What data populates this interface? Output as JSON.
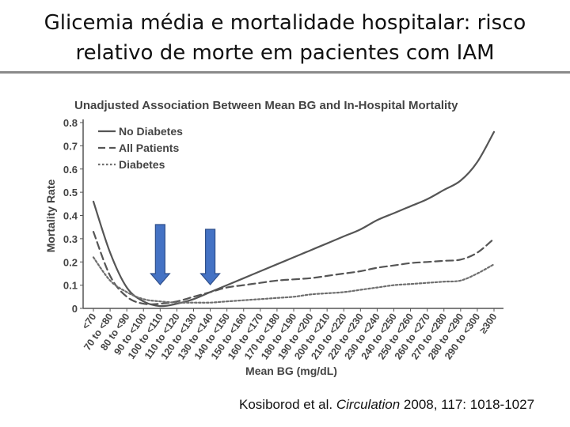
{
  "slide": {
    "title_line1": "Glicemia média e mortalidade hospitalar: risco",
    "title_line2": "relativo de morte em pacientes com IAM"
  },
  "citation": {
    "authors": "Kosiborod et al.",
    "journal": "Circulation",
    "details": "2008, 117: 1018-1027"
  },
  "chart_data": {
    "type": "line",
    "title": "Unadjusted Association Between Mean BG and In-Hospital Mortality",
    "xlabel": "Mean BG (mg/dL)",
    "ylabel": "Mortality Rate",
    "ylim": [
      0,
      0.8
    ],
    "yticks": [
      "0",
      "0.1",
      "0.2",
      "0.3",
      "0.4",
      "0.5",
      "0.6",
      "0.7",
      "0.8"
    ],
    "grid": false,
    "legend_position": "top-left",
    "categories": [
      "<70",
      "70 to <80",
      "80 to <90",
      "90 to <100",
      "100 to <110",
      "110 to <120",
      "120 to <130",
      "130 to <140",
      "140 to <150",
      "150 to <160",
      "160 to <170",
      "170 to <180",
      "180 to <190",
      "190 to <200",
      "200 to <210",
      "210 to <220",
      "220 to <230",
      "230 to <240",
      "240 to <250",
      "250 to <260",
      "260 to <270",
      "270 to <280",
      "280 to <290",
      "290 to <300",
      "≥300"
    ],
    "series": [
      {
        "name": "No Diabetes",
        "style": "solid",
        "values": [
          0.46,
          0.24,
          0.09,
          0.03,
          0.01,
          0.02,
          0.04,
          0.07,
          0.1,
          0.13,
          0.16,
          0.19,
          0.22,
          0.25,
          0.28,
          0.31,
          0.34,
          0.38,
          0.41,
          0.44,
          0.47,
          0.51,
          0.55,
          0.63,
          0.76
        ]
      },
      {
        "name": "All Patients",
        "style": "dashed",
        "values": [
          0.33,
          0.14,
          0.05,
          0.02,
          0.02,
          0.03,
          0.05,
          0.07,
          0.09,
          0.1,
          0.11,
          0.12,
          0.125,
          0.13,
          0.14,
          0.15,
          0.16,
          0.175,
          0.185,
          0.195,
          0.2,
          0.205,
          0.21,
          0.24,
          0.3
        ]
      },
      {
        "name": "Diabetes",
        "style": "dotted",
        "values": [
          0.22,
          0.12,
          0.07,
          0.04,
          0.03,
          0.025,
          0.025,
          0.025,
          0.03,
          0.035,
          0.04,
          0.045,
          0.05,
          0.06,
          0.065,
          0.07,
          0.08,
          0.09,
          0.1,
          0.105,
          0.11,
          0.115,
          0.12,
          0.15,
          0.19
        ]
      }
    ],
    "annotations": [
      {
        "type": "arrow-down",
        "color": "#4472c4",
        "category": "100 to <110"
      },
      {
        "type": "arrow-down",
        "color": "#4472c4",
        "category": "130 to <140"
      }
    ]
  }
}
